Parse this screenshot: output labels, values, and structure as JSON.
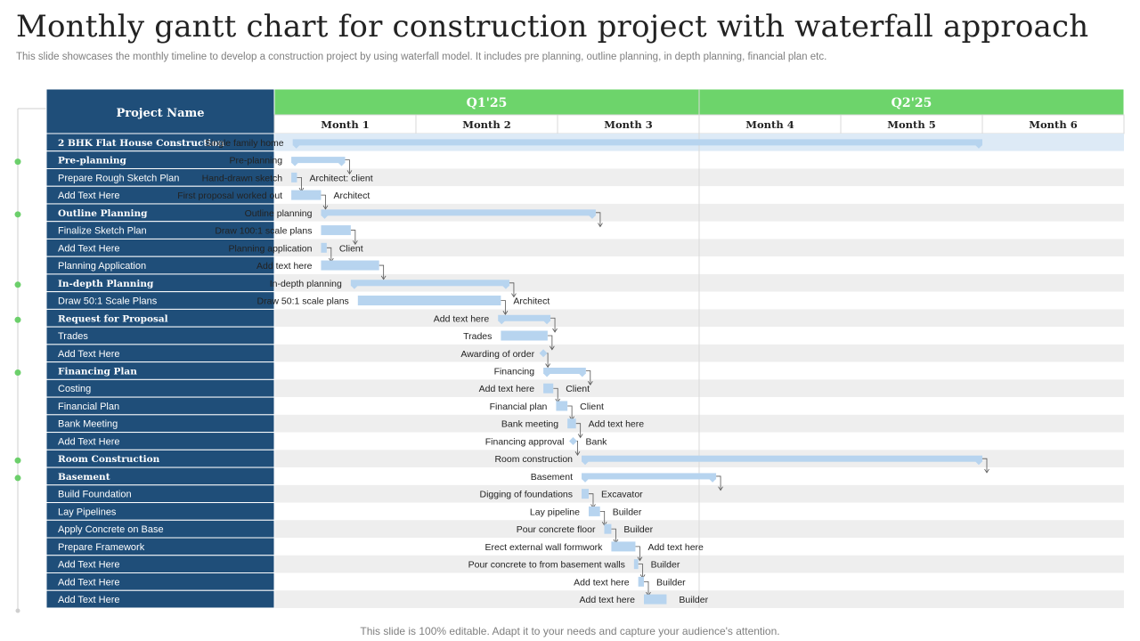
{
  "title": "Monthly gantt chart for construction project with waterfall approach",
  "subtitle": "This slide showcases the monthly timeline to develop a construction project by using waterfall model. It includes pre planning, outline planning, in depth planning, financial plan etc.",
  "footer": "This slide is 100% editable. Adapt it to your needs and capture your audience's attention.",
  "colors": {
    "header_blue": "#1f4e79",
    "quarter_green": "#6dd46b",
    "bar": "#b7d4ef",
    "dot": "#6ccf6b",
    "stripe": "#eeeeee"
  },
  "chart_data": {
    "type": "gantt",
    "row_header": "Project Name",
    "quarters": [
      "Q1'25",
      "Q2'25"
    ],
    "months": [
      "Month 1",
      "Month 2",
      "Month 3",
      "Month 4",
      "Month 5",
      "Month 6"
    ],
    "tasks": [
      {
        "name": "2 BHK Flat House Construction",
        "bold": true,
        "dot": false,
        "label": "Single family home",
        "type": "bar",
        "start": 1.13,
        "end": 6.0,
        "note": ""
      },
      {
        "name": "Pre-planning",
        "bold": true,
        "dot": true,
        "label": "Pre-planning",
        "type": "bar",
        "start": 1.12,
        "end": 1.5,
        "note": ""
      },
      {
        "name": "Prepare Rough Sketch Plan",
        "bold": false,
        "dot": false,
        "label": "Hand-drawn sketch",
        "type": "bar",
        "start": 1.12,
        "end": 1.16,
        "note": "Architect: client"
      },
      {
        "name": "Add Text Here",
        "bold": false,
        "dot": false,
        "label": "First proposal worked out",
        "type": "bar",
        "start": 1.12,
        "end": 1.33,
        "note": "Architect"
      },
      {
        "name": "Outline Planning",
        "bold": true,
        "dot": true,
        "label": "Outline planning",
        "type": "bar",
        "start": 1.33,
        "end": 3.27,
        "note": ""
      },
      {
        "name": "Finalize Sketch Plan",
        "bold": false,
        "dot": false,
        "label": "Draw 100:1 scale plans",
        "type": "bar",
        "start": 1.33,
        "end": 1.54,
        "note": ""
      },
      {
        "name": "Add Text Here",
        "bold": false,
        "dot": false,
        "label": "Planning  application",
        "type": "bar",
        "start": 1.33,
        "end": 1.37,
        "note": "Client"
      },
      {
        "name": "Planning  Application",
        "bold": false,
        "dot": false,
        "label": "Add text here",
        "type": "bar",
        "start": 1.33,
        "end": 1.74,
        "note": ""
      },
      {
        "name": "In-depth Planning",
        "bold": true,
        "dot": true,
        "label": "In-depth planning",
        "type": "bar",
        "start": 1.54,
        "end": 2.66,
        "note": ""
      },
      {
        "name": "Draw 50:1 Scale Plans",
        "bold": false,
        "dot": false,
        "label": "Draw 50:1 scale plans",
        "type": "bar",
        "start": 1.59,
        "end": 2.6,
        "note": "Architect"
      },
      {
        "name": "Request for Proposal",
        "bold": true,
        "dot": true,
        "label": "Add text here",
        "type": "bar",
        "start": 2.58,
        "end": 2.95,
        "note": ""
      },
      {
        "name": "Trades",
        "bold": false,
        "dot": false,
        "label": "Trades",
        "type": "bar",
        "start": 2.6,
        "end": 2.93,
        "note": ""
      },
      {
        "name": "Add Text Here",
        "bold": false,
        "dot": false,
        "label": "Awarding of order",
        "type": "milestone",
        "start": 2.9,
        "end": 2.9,
        "note": ""
      },
      {
        "name": "Financing Plan",
        "bold": true,
        "dot": true,
        "label": "Financing",
        "type": "bar",
        "start": 2.9,
        "end": 3.2,
        "note": ""
      },
      {
        "name": "Costing",
        "bold": false,
        "dot": false,
        "label": "Add text here",
        "type": "bar",
        "start": 2.9,
        "end": 2.97,
        "note": "Client"
      },
      {
        "name": "Financial Plan",
        "bold": false,
        "dot": false,
        "label": "Financial plan",
        "type": "bar",
        "start": 2.99,
        "end": 3.07,
        "note": "Client"
      },
      {
        "name": "Bank Meeting",
        "bold": false,
        "dot": false,
        "label": "Bank meeting",
        "type": "bar",
        "start": 3.07,
        "end": 3.13,
        "note": "Add text here"
      },
      {
        "name": "Add Text Here",
        "bold": false,
        "dot": false,
        "label": "Financing approval",
        "type": "milestone",
        "start": 3.11,
        "end": 3.11,
        "note": "Bank"
      },
      {
        "name": "Room Construction",
        "bold": true,
        "dot": true,
        "label": "Room construction",
        "type": "bar",
        "start": 3.17,
        "end": 6.0,
        "note": ""
      },
      {
        "name": "Basement",
        "bold": true,
        "dot": true,
        "label": "Basement",
        "type": "bar",
        "start": 3.17,
        "end": 4.12,
        "note": ""
      },
      {
        "name": "Build Foundation",
        "bold": false,
        "dot": false,
        "label": "Digging  of foundations",
        "type": "bar",
        "start": 3.17,
        "end": 3.22,
        "note": "Excavator"
      },
      {
        "name": "Lay Pipelines",
        "bold": false,
        "dot": false,
        "label": "Lay pipeline",
        "type": "bar",
        "start": 3.22,
        "end": 3.3,
        "note": "Builder"
      },
      {
        "name": "Apply Concrete on Base",
        "bold": false,
        "dot": false,
        "label": "Pour  concrete floor",
        "type": "bar",
        "start": 3.33,
        "end": 3.38,
        "note": "Builder"
      },
      {
        "name": "Prepare Framework",
        "bold": false,
        "dot": false,
        "label": "Erect external wall formwork",
        "type": "bar",
        "start": 3.38,
        "end": 3.55,
        "note": "Add text here"
      },
      {
        "name": "Add Text Here",
        "bold": false,
        "dot": false,
        "label": "Pour  concrete to from basement walls",
        "type": "bar",
        "start": 3.54,
        "end": 3.57,
        "note": "Builder"
      },
      {
        "name": "Add Text Here",
        "bold": false,
        "dot": false,
        "label": "Add text here",
        "type": "bar",
        "start": 3.57,
        "end": 3.61,
        "note": "Builder"
      },
      {
        "name": "Add Text Here",
        "bold": false,
        "dot": false,
        "label": "Add text here",
        "type": "bar",
        "start": 3.61,
        "end": 3.77,
        "note": "Builder"
      }
    ],
    "dependencies": [
      [
        1,
        2
      ],
      [
        2,
        3
      ],
      [
        3,
        4
      ],
      [
        4,
        5
      ],
      [
        5,
        6
      ],
      [
        6,
        7
      ],
      [
        7,
        8
      ],
      [
        8,
        9
      ],
      [
        9,
        10
      ],
      [
        10,
        11
      ],
      [
        11,
        12
      ],
      [
        12,
        13
      ],
      [
        13,
        14
      ],
      [
        14,
        15
      ],
      [
        15,
        16
      ],
      [
        16,
        17
      ],
      [
        17,
        18
      ],
      [
        18,
        19
      ],
      [
        19,
        20
      ],
      [
        20,
        21
      ],
      [
        21,
        22
      ],
      [
        22,
        23
      ],
      [
        23,
        24
      ],
      [
        24,
        25
      ],
      [
        25,
        26
      ]
    ]
  }
}
